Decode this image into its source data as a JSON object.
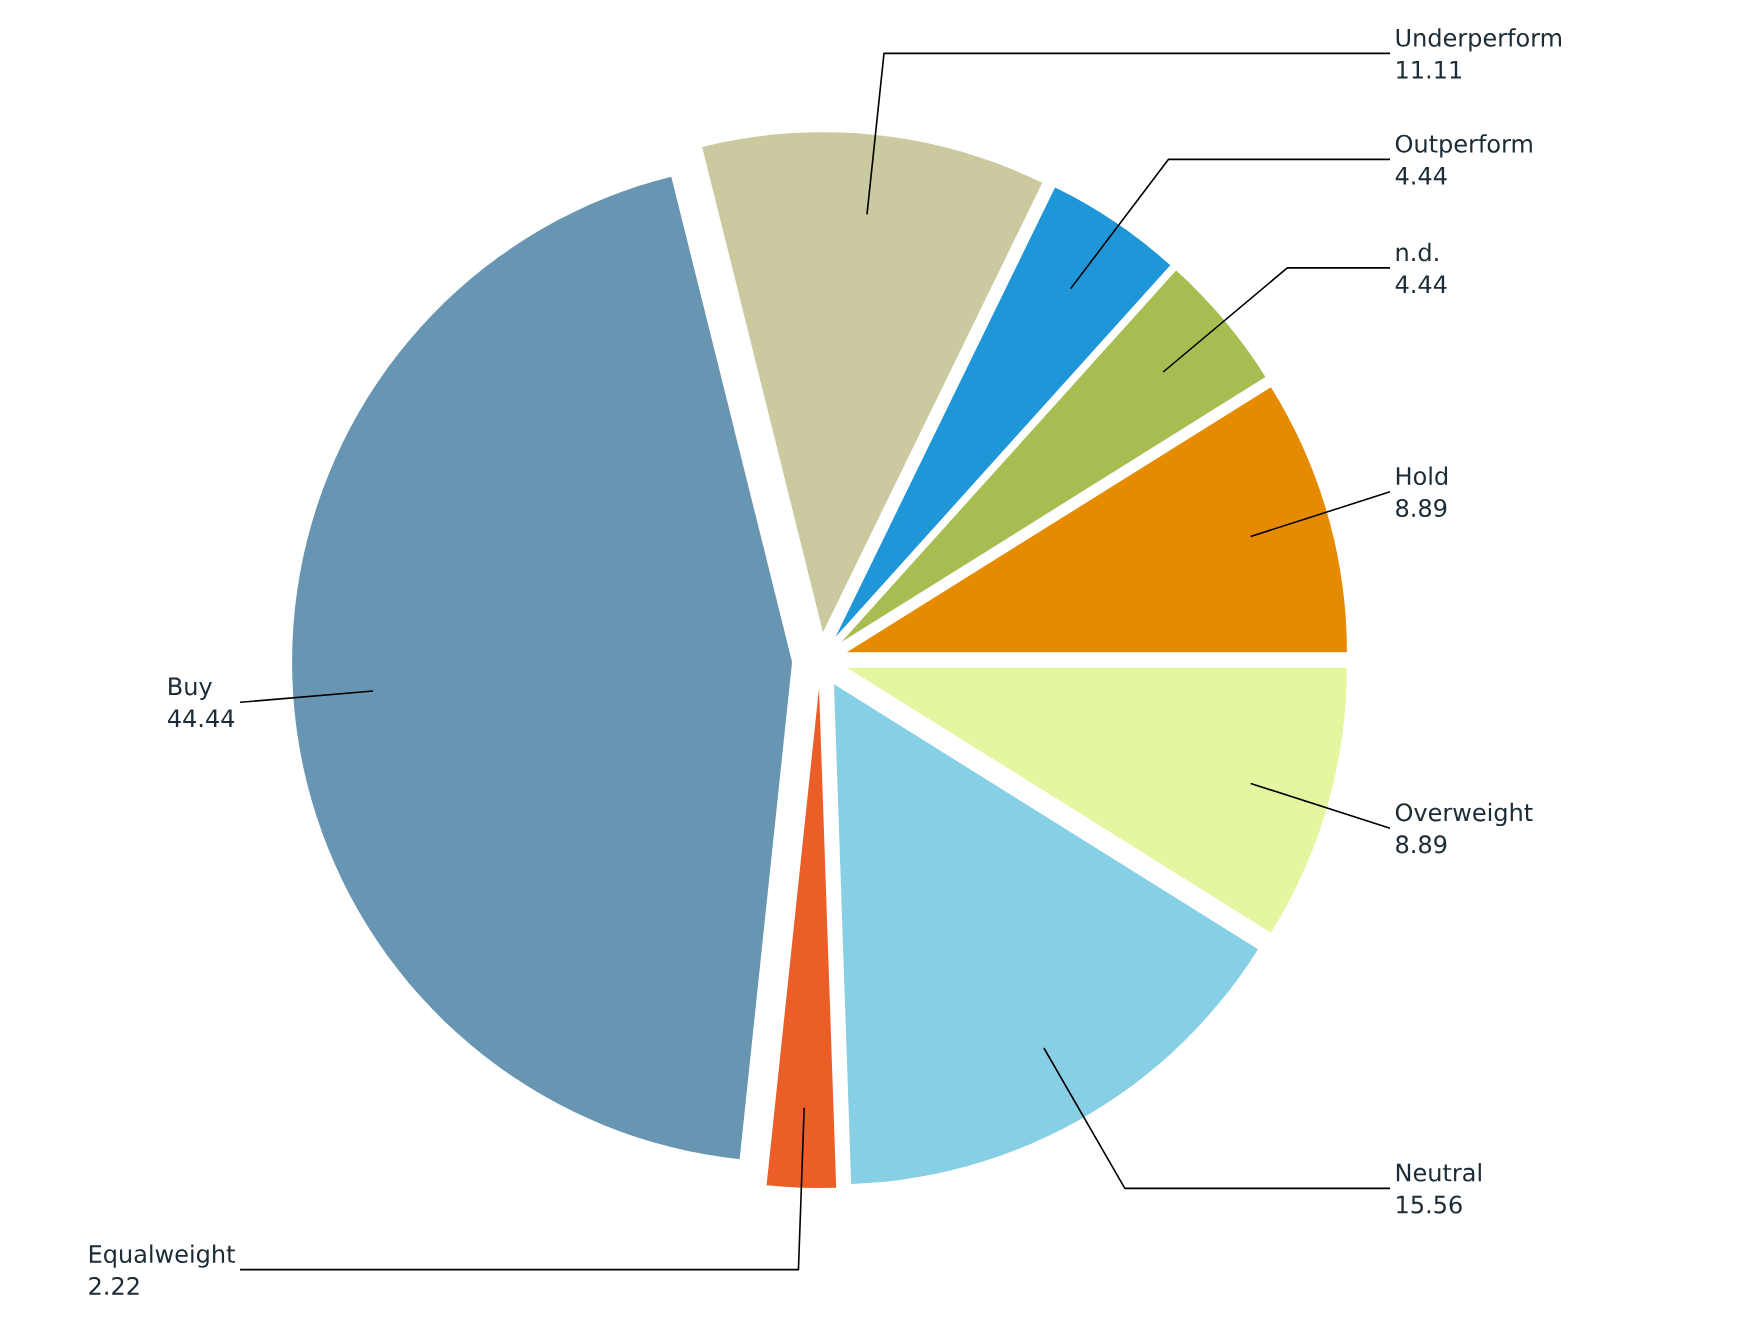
{
  "chart_data": {
    "type": "pie",
    "categories": [
      "Hold",
      "n.d.",
      "Outperform",
      "Underperform",
      "Buy",
      "Equalweight",
      "Neutral",
      "Overweight"
    ],
    "values": [
      8.89,
      4.44,
      4.44,
      11.11,
      44.44,
      2.22,
      15.56,
      8.89
    ],
    "colors": [
      "#e68a00",
      "#a6bd52",
      "#1e96d8",
      "#cbc99f",
      "#6795b2",
      "#ec5e28",
      "#87cfe5",
      "#e4f7a0"
    ],
    "data_labels": true
  }
}
